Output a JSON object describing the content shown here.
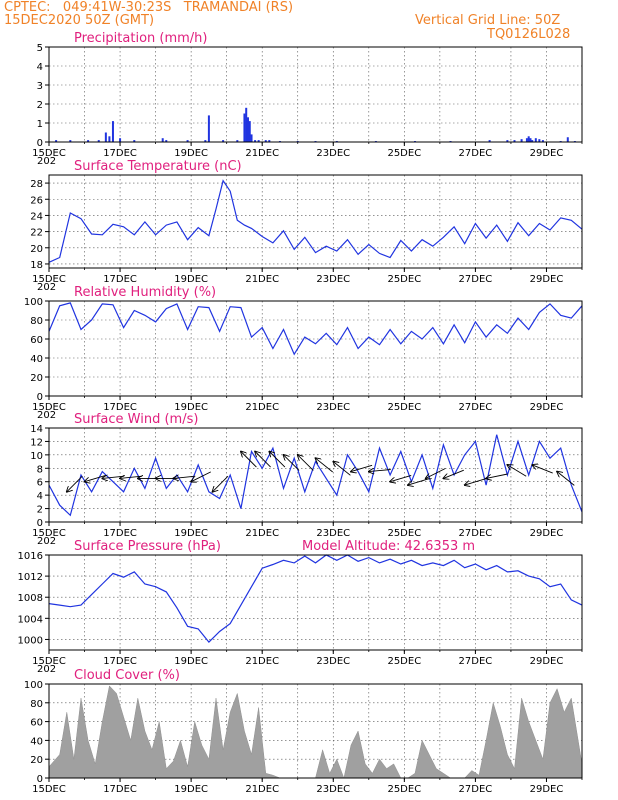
{
  "header": {
    "line1": "CPTEC:   049:41W-30:23S   TRAMANDAI (RS)",
    "line2_left": "15DEC2020 50Z (GMT)",
    "line2_right": "Vertical Grid Line: 50Z",
    "line3_right": "TQ0126L028"
  },
  "x_axis": {
    "tick_labels": [
      "15DEC",
      "17DEC",
      "19DEC",
      "21DEC",
      "23DEC",
      "25DEC",
      "27DEC",
      "29DEC"
    ],
    "tick_days": [
      0,
      2,
      4,
      6,
      8,
      10,
      12,
      14
    ],
    "range_days": [
      0,
      15
    ],
    "start_fragment": "202"
  },
  "colors": {
    "line": "#2034e0",
    "title": "#e0207e",
    "header": "#f08228",
    "cloud": "#a0a0a0"
  },
  "chart_data": [
    {
      "id": "precip",
      "type": "bar",
      "title": "Precipitation (mm/h)",
      "ylim": [
        0,
        5
      ],
      "yticks": [
        "0",
        "1",
        "2",
        "3",
        "4",
        "5"
      ],
      "x_days": [
        0.2,
        0.6,
        1.1,
        1.4,
        1.6,
        1.7,
        1.8,
        2.0,
        2.4,
        3.2,
        3.3,
        3.9,
        4.4,
        4.5,
        4.9,
        5.3,
        5.5,
        5.55,
        5.6,
        5.65,
        5.7,
        5.8,
        5.9,
        6.1,
        6.2,
        6.5,
        7.0,
        7.5,
        8.1,
        9.2,
        10.3,
        11.3,
        12.4,
        12.9,
        13.1,
        13.3,
        13.45,
        13.5,
        13.55,
        13.6,
        13.7,
        13.8,
        13.9,
        14.4,
        14.6,
        14.8
      ],
      "values": [
        0.1,
        0.1,
        0.1,
        0.1,
        0.5,
        0.3,
        1.1,
        0.2,
        0.1,
        0.2,
        0.1,
        0.1,
        0.1,
        1.4,
        0.1,
        0.1,
        1.5,
        1.8,
        1.3,
        1.1,
        0.4,
        0.1,
        0.1,
        0.1,
        0.1,
        0.05,
        0.05,
        0.05,
        0.05,
        0.05,
        0.05,
        0.05,
        0.1,
        0.1,
        0.1,
        0.15,
        0.2,
        0.3,
        0.2,
        0.1,
        0.2,
        0.15,
        0.1,
        0.05,
        0.25,
        0.05
      ]
    },
    {
      "id": "temp",
      "type": "line",
      "title": "Surface Temperature (nC)",
      "ylim": [
        17.5,
        29
      ],
      "yticks": [
        "18",
        "20",
        "22",
        "24",
        "26",
        "28"
      ],
      "ytick_values": [
        18,
        20,
        22,
        24,
        26,
        28
      ],
      "x_days": [
        0,
        0.3,
        0.6,
        0.9,
        1.2,
        1.5,
        1.8,
        2.1,
        2.4,
        2.7,
        3.0,
        3.3,
        3.6,
        3.9,
        4.2,
        4.5,
        4.7,
        4.9,
        5.1,
        5.3,
        5.5,
        5.7,
        6.0,
        6.3,
        6.6,
        6.9,
        7.2,
        7.5,
        7.8,
        8.1,
        8.4,
        8.7,
        9.0,
        9.3,
        9.6,
        9.9,
        10.2,
        10.5,
        10.8,
        11.1,
        11.4,
        11.7,
        12.0,
        12.3,
        12.6,
        12.9,
        13.2,
        13.5,
        13.8,
        14.1,
        14.4,
        14.7,
        15.0
      ],
      "values": [
        18.2,
        18.8,
        24.3,
        23.6,
        21.7,
        21.6,
        22.9,
        22.6,
        21.6,
        23.2,
        21.6,
        22.8,
        23.2,
        21.0,
        22.5,
        21.5,
        24.8,
        28.3,
        27.0,
        23.4,
        22.8,
        22.4,
        21.4,
        20.6,
        22.1,
        19.8,
        21.3,
        19.4,
        20.2,
        19.6,
        21.0,
        19.2,
        20.4,
        19.3,
        18.8,
        20.9,
        19.6,
        21.0,
        20.2,
        21.3,
        22.6,
        20.5,
        23.0,
        21.2,
        22.8,
        20.8,
        23.1,
        21.5,
        23.0,
        22.2,
        23.7,
        23.4,
        22.3
      ]
    },
    {
      "id": "rh",
      "type": "line",
      "title": "Relative Humidity (%)",
      "ylim": [
        0,
        100
      ],
      "yticks": [
        "0",
        "20",
        "40",
        "60",
        "80",
        "100"
      ],
      "ytick_values": [
        0,
        20,
        40,
        60,
        80,
        100
      ],
      "x_days": [
        0,
        0.3,
        0.6,
        0.9,
        1.2,
        1.5,
        1.8,
        2.1,
        2.4,
        2.7,
        3.0,
        3.3,
        3.6,
        3.9,
        4.2,
        4.5,
        4.8,
        5.1,
        5.4,
        5.7,
        6.0,
        6.3,
        6.6,
        6.9,
        7.2,
        7.5,
        7.8,
        8.1,
        8.4,
        8.7,
        9.0,
        9.3,
        9.6,
        9.9,
        10.2,
        10.5,
        10.8,
        11.1,
        11.4,
        11.7,
        12.0,
        12.3,
        12.6,
        12.9,
        13.2,
        13.5,
        13.8,
        14.1,
        14.4,
        14.7,
        15.0
      ],
      "values": [
        68,
        95,
        98,
        70,
        80,
        97,
        96,
        72,
        90,
        85,
        78,
        92,
        97,
        70,
        94,
        93,
        68,
        94,
        93,
        62,
        72,
        50,
        70,
        44,
        62,
        55,
        66,
        54,
        72,
        50,
        62,
        54,
        70,
        55,
        68,
        60,
        72,
        55,
        75,
        56,
        78,
        62,
        75,
        66,
        82,
        70,
        88,
        97,
        85,
        82,
        95
      ]
    },
    {
      "id": "wind",
      "type": "line",
      "title": "Surface Wind (m/s)",
      "ylim": [
        0,
        14
      ],
      "yticks": [
        "0",
        "2",
        "4",
        "6",
        "8",
        "10",
        "12",
        "14"
      ],
      "ytick_values": [
        0,
        2,
        4,
        6,
        8,
        10,
        12,
        14
      ],
      "x_days": [
        0,
        0.3,
        0.6,
        0.9,
        1.2,
        1.5,
        1.8,
        2.1,
        2.4,
        2.7,
        3.0,
        3.3,
        3.6,
        3.9,
        4.2,
        4.5,
        4.8,
        5.1,
        5.4,
        5.7,
        6.0,
        6.3,
        6.6,
        6.9,
        7.2,
        7.5,
        7.8,
        8.1,
        8.4,
        8.7,
        9.0,
        9.3,
        9.6,
        9.9,
        10.2,
        10.5,
        10.8,
        11.1,
        11.4,
        11.7,
        12.0,
        12.3,
        12.6,
        12.9,
        13.2,
        13.5,
        13.8,
        14.1,
        14.4,
        14.7,
        15.0
      ],
      "values": [
        5.5,
        2.5,
        1.0,
        7.0,
        4.5,
        7.5,
        6.0,
        4.5,
        8.0,
        5.0,
        9.5,
        5.0,
        7.0,
        4.5,
        8.5,
        4.5,
        3.5,
        7.0,
        2.0,
        10.5,
        8.0,
        11.0,
        5.0,
        9.5,
        4.5,
        9.0,
        6.5,
        4.0,
        10.0,
        7.5,
        4.5,
        11.0,
        7.0,
        10.5,
        6.0,
        10.0,
        5.0,
        11.5,
        7.0,
        10.0,
        12.0,
        5.5,
        13.0,
        7.0,
        12.0,
        7.0,
        12.0,
        9.5,
        11.0,
        5.5,
        1.5
      ]
    },
    {
      "id": "pres",
      "type": "line",
      "title": "Surface Pressure (hPa)",
      "annotation": "Model Altitude: 42.6353 m",
      "ylim": [
        998,
        1016
      ],
      "yticks": [
        "1000",
        "1004",
        "1008",
        "1012",
        "1016"
      ],
      "ytick_values": [
        1000,
        1004,
        1008,
        1012,
        1016
      ],
      "x_days": [
        0,
        0.3,
        0.6,
        0.9,
        1.2,
        1.5,
        1.8,
        2.1,
        2.4,
        2.7,
        3.0,
        3.3,
        3.6,
        3.9,
        4.2,
        4.5,
        4.8,
        5.1,
        5.4,
        5.7,
        6.0,
        6.3,
        6.6,
        6.9,
        7.2,
        7.5,
        7.8,
        8.1,
        8.4,
        8.7,
        9.0,
        9.3,
        9.6,
        9.9,
        10.2,
        10.5,
        10.8,
        11.1,
        11.4,
        11.7,
        12.0,
        12.3,
        12.6,
        12.9,
        13.2,
        13.5,
        13.8,
        14.1,
        14.4,
        14.7,
        15.0
      ],
      "values": [
        1006.8,
        1006.5,
        1006.2,
        1006.5,
        1008.5,
        1010.5,
        1012.5,
        1011.8,
        1012.8,
        1010.5,
        1010.0,
        1009.0,
        1006.0,
        1002.5,
        1002.0,
        999.5,
        1001.5,
        1003.0,
        1006.5,
        1010.0,
        1013.5,
        1014.2,
        1015.0,
        1014.5,
        1015.8,
        1014.5,
        1016.0,
        1015.0,
        1016.0,
        1014.8,
        1015.5,
        1014.5,
        1015.2,
        1014.3,
        1015.0,
        1014.0,
        1014.5,
        1014.0,
        1015.0,
        1013.6,
        1014.3,
        1013.2,
        1014.0,
        1012.8,
        1013.0,
        1012.0,
        1011.5,
        1010.0,
        1010.5,
        1007.5,
        1006.5
      ]
    },
    {
      "id": "cloud",
      "type": "area",
      "title": "Cloud Cover (%)",
      "ylim": [
        0,
        100
      ],
      "yticks": [
        "0",
        "20",
        "40",
        "60",
        "80",
        "100"
      ],
      "ytick_values": [
        0,
        20,
        40,
        60,
        80,
        100
      ],
      "x_days": [
        0,
        0.3,
        0.5,
        0.7,
        0.9,
        1.1,
        1.3,
        1.5,
        1.7,
        1.9,
        2.1,
        2.3,
        2.5,
        2.7,
        2.9,
        3.1,
        3.3,
        3.5,
        3.7,
        3.9,
        4.1,
        4.3,
        4.5,
        4.7,
        4.9,
        5.1,
        5.3,
        5.5,
        5.7,
        5.9,
        6.1,
        6.3,
        6.5,
        6.7,
        6.9,
        7.1,
        7.3,
        7.5,
        7.7,
        7.9,
        8.1,
        8.3,
        8.5,
        8.7,
        8.9,
        9.1,
        9.3,
        9.5,
        9.7,
        9.9,
        10.1,
        10.3,
        10.5,
        10.7,
        10.9,
        11.1,
        11.3,
        11.5,
        11.7,
        11.9,
        12.1,
        12.3,
        12.5,
        12.7,
        12.9,
        13.1,
        13.3,
        13.5,
        13.7,
        13.9,
        14.1,
        14.3,
        14.5,
        14.7,
        15.0
      ],
      "values": [
        12,
        25,
        70,
        20,
        85,
        40,
        15,
        60,
        98,
        90,
        65,
        40,
        85,
        50,
        30,
        60,
        10,
        18,
        40,
        12,
        60,
        35,
        20,
        85,
        30,
        70,
        90,
        50,
        25,
        75,
        5,
        3,
        0,
        0,
        0,
        0,
        0,
        0,
        30,
        5,
        20,
        0,
        35,
        50,
        15,
        5,
        20,
        10,
        15,
        0,
        0,
        5,
        40,
        25,
        10,
        5,
        0,
        0,
        0,
        8,
        3,
        40,
        80,
        55,
        25,
        10,
        85,
        60,
        40,
        20,
        80,
        95,
        70,
        85,
        15
      ]
    }
  ],
  "wind_arrows": [
    {
      "x_day": 0.5,
      "speed": 4.5,
      "dx": 1,
      "dy": 1
    },
    {
      "x_day": 1.0,
      "speed": 6.0,
      "dx": 1,
      "dy": 0.3
    },
    {
      "x_day": 1.5,
      "speed": 6.5,
      "dx": 1,
      "dy": 0.1
    },
    {
      "x_day": 2.0,
      "speed": 6.5,
      "dx": 1,
      "dy": 0.1
    },
    {
      "x_day": 2.5,
      "speed": 6.5,
      "dx": 1,
      "dy": 0.0
    },
    {
      "x_day": 3.0,
      "speed": 6.5,
      "dx": 1,
      "dy": 0.0
    },
    {
      "x_day": 3.5,
      "speed": 6.5,
      "dx": 1,
      "dy": 0.1
    },
    {
      "x_day": 4.0,
      "speed": 6.0,
      "dx": 1,
      "dy": 0.5
    },
    {
      "x_day": 4.6,
      "speed": 4.5,
      "dx": 1,
      "dy": 1
    },
    {
      "x_day": 5.4,
      "speed": 10.5,
      "dx": 1,
      "dy": -1
    },
    {
      "x_day": 5.8,
      "speed": 10.5,
      "dx": 1,
      "dy": -1
    },
    {
      "x_day": 6.2,
      "speed": 10.5,
      "dx": 1,
      "dy": -1
    },
    {
      "x_day": 6.6,
      "speed": 10.0,
      "dx": 1,
      "dy": -1
    },
    {
      "x_day": 7.0,
      "speed": 10.0,
      "dx": 1,
      "dy": -1
    },
    {
      "x_day": 7.5,
      "speed": 9.5,
      "dx": 1,
      "dy": -0.8
    },
    {
      "x_day": 8.0,
      "speed": 9.0,
      "dx": 1,
      "dy": -0.8
    },
    {
      "x_day": 8.5,
      "speed": 7.5,
      "dx": 1,
      "dy": 0.3
    },
    {
      "x_day": 9.0,
      "speed": 7.5,
      "dx": 1,
      "dy": 0.1
    },
    {
      "x_day": 9.6,
      "speed": 6.0,
      "dx": 1,
      "dy": 0.3
    },
    {
      "x_day": 10.1,
      "speed": 5.5,
      "dx": 1,
      "dy": 0.3
    },
    {
      "x_day": 10.6,
      "speed": 6.5,
      "dx": 1,
      "dy": 0.5
    },
    {
      "x_day": 11.1,
      "speed": 6.5,
      "dx": 1,
      "dy": 0.4
    },
    {
      "x_day": 11.7,
      "speed": 5.5,
      "dx": 1,
      "dy": 0.3
    },
    {
      "x_day": 12.3,
      "speed": 6.5,
      "dx": 1,
      "dy": 0.2
    },
    {
      "x_day": 12.9,
      "speed": 8.5,
      "dx": 1,
      "dy": -0.6
    },
    {
      "x_day": 13.6,
      "speed": 8.5,
      "dx": 1,
      "dy": -0.4
    },
    {
      "x_day": 14.3,
      "speed": 7.5,
      "dx": 1,
      "dy": -0.8
    }
  ]
}
